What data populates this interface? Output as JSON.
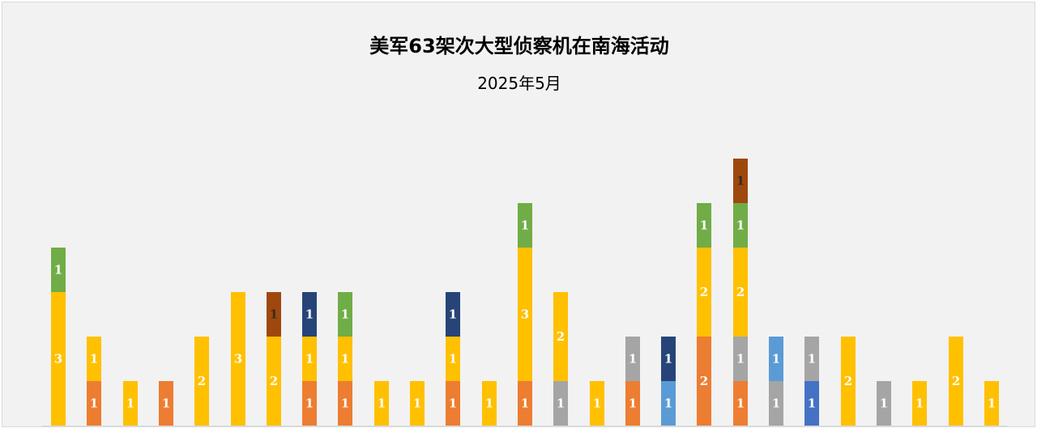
{
  "chart_data": {
    "type": "bar",
    "stacked": true,
    "title": "美军63架次大型侦察机在南海活动",
    "subtitle": "2025年5月",
    "xlabel": "",
    "ylabel": "",
    "ylim": [
      0,
      6
    ],
    "grid": false,
    "legend": "none",
    "bars": [
      {
        "segments": [
          {
            "value": 3,
            "color": "#FFC000"
          },
          {
            "value": 1,
            "color": "#70AD47"
          }
        ]
      },
      {
        "segments": [
          {
            "value": 1,
            "color": "#ED7D31"
          },
          {
            "value": 1,
            "color": "#FFC000"
          }
        ]
      },
      {
        "segments": [
          {
            "value": 1,
            "color": "#FFC000"
          }
        ]
      },
      {
        "segments": [
          {
            "value": 1,
            "color": "#ED7D31"
          }
        ]
      },
      {
        "segments": [
          {
            "value": 2,
            "color": "#FFC000"
          }
        ]
      },
      {
        "segments": [
          {
            "value": 3,
            "color": "#FFC000"
          }
        ]
      },
      {
        "segments": [
          {
            "value": 2,
            "color": "#FFC000"
          },
          {
            "value": 1,
            "color": "#9E480E"
          }
        ]
      },
      {
        "segments": [
          {
            "value": 1,
            "color": "#ED7D31"
          },
          {
            "value": 1,
            "color": "#FFC000"
          },
          {
            "value": 1,
            "color": "#264478"
          }
        ]
      },
      {
        "segments": [
          {
            "value": 1,
            "color": "#ED7D31"
          },
          {
            "value": 1,
            "color": "#FFC000"
          },
          {
            "value": 1,
            "color": "#70AD47"
          }
        ]
      },
      {
        "segments": [
          {
            "value": 1,
            "color": "#FFC000"
          }
        ]
      },
      {
        "segments": [
          {
            "value": 1,
            "color": "#FFC000"
          }
        ]
      },
      {
        "segments": [
          {
            "value": 1,
            "color": "#ED7D31"
          },
          {
            "value": 1,
            "color": "#FFC000"
          },
          {
            "value": 1,
            "color": "#264478"
          }
        ]
      },
      {
        "segments": [
          {
            "value": 1,
            "color": "#FFC000"
          }
        ]
      },
      {
        "segments": [
          {
            "value": 1,
            "color": "#ED7D31"
          },
          {
            "value": 3,
            "color": "#FFC000"
          },
          {
            "value": 1,
            "color": "#70AD47"
          }
        ]
      },
      {
        "segments": [
          {
            "value": 1,
            "color": "#A5A5A5"
          },
          {
            "value": 2,
            "color": "#FFC000"
          }
        ]
      },
      {
        "segments": [
          {
            "value": 1,
            "color": "#FFC000"
          }
        ]
      },
      {
        "segments": [
          {
            "value": 1,
            "color": "#ED7D31"
          },
          {
            "value": 1,
            "color": "#A5A5A5"
          }
        ]
      },
      {
        "segments": [
          {
            "value": 1,
            "color": "#5B9BD5"
          },
          {
            "value": 1,
            "color": "#264478"
          }
        ]
      },
      {
        "segments": [
          {
            "value": 2,
            "color": "#ED7D31"
          },
          {
            "value": 2,
            "color": "#FFC000"
          },
          {
            "value": 1,
            "color": "#70AD47"
          }
        ]
      },
      {
        "segments": [
          {
            "value": 1,
            "color": "#ED7D31"
          },
          {
            "value": 1,
            "color": "#A5A5A5"
          },
          {
            "value": 2,
            "color": "#FFC000"
          },
          {
            "value": 1,
            "color": "#70AD47"
          },
          {
            "value": 1,
            "color": "#9E480E"
          }
        ]
      },
      {
        "segments": [
          {
            "value": 1,
            "color": "#A5A5A5"
          },
          {
            "value": 1,
            "color": "#5B9BD5"
          }
        ]
      },
      {
        "segments": [
          {
            "value": 1,
            "color": "#4472C4"
          },
          {
            "value": 1,
            "color": "#A5A5A5"
          }
        ]
      },
      {
        "segments": [
          {
            "value": 2,
            "color": "#FFC000"
          }
        ]
      },
      {
        "segments": [
          {
            "value": 1,
            "color": "#A5A5A5"
          }
        ]
      },
      {
        "segments": [
          {
            "value": 1,
            "color": "#FFC000"
          }
        ]
      },
      {
        "segments": [
          {
            "value": 2,
            "color": "#FFC000"
          }
        ]
      },
      {
        "segments": [
          {
            "value": 1,
            "color": "#FFC000"
          }
        ]
      }
    ]
  }
}
